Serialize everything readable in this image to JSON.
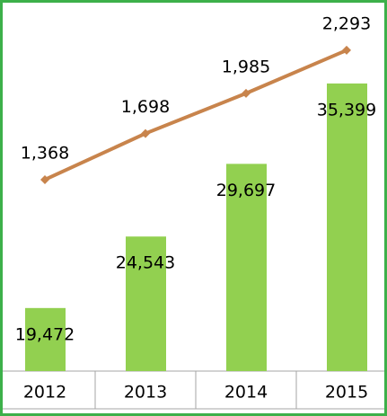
{
  "chart_data": {
    "type": "bar",
    "categories": [
      "2012",
      "2013",
      "2014",
      "2015"
    ],
    "series": [
      {
        "type": "bar",
        "color": "#92d050",
        "values": [
          19472,
          24543,
          29697,
          35399
        ],
        "value_labels": [
          "19,472",
          "24,543",
          "29,697",
          "35,399"
        ]
      },
      {
        "type": "line",
        "axis": "y2",
        "color": "#c8844c",
        "values": [
          1368,
          1698,
          1985,
          2293
        ],
        "value_labels": [
          "1,368",
          "1,698",
          "1,985",
          "2,293"
        ]
      }
    ],
    "ylim": [
      15000,
      41000
    ],
    "y2lim": [
      0,
      2620
    ]
  }
}
